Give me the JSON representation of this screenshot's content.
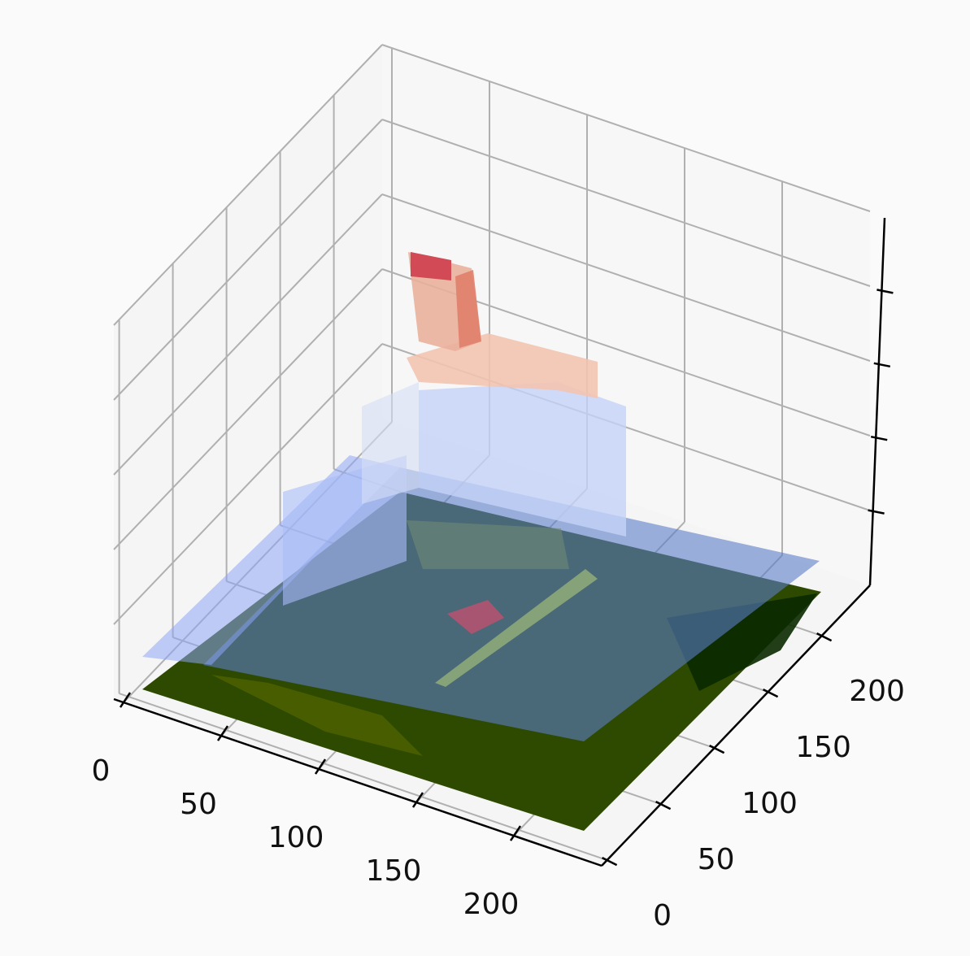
{
  "chart_data": {
    "type": "surface3d",
    "xlim": [
      -5,
      245
    ],
    "ylim": [
      -5,
      245
    ],
    "xticks": [
      0,
      50,
      100,
      150,
      200
    ],
    "yticks": [
      0,
      50,
      100,
      150,
      200
    ],
    "grid": true
  }
}
